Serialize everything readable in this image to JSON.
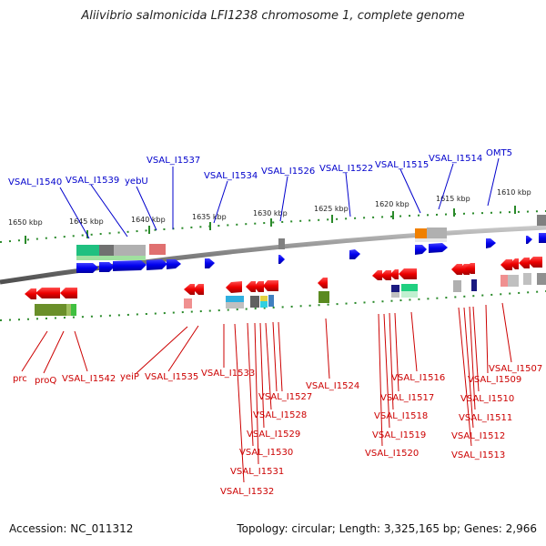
{
  "title": "Aliivibrio salmonicida LFI1238 chromosome 1, complete genome",
  "footer": {
    "accession": "Accession: NC_011312",
    "summary": "Topology: circular; Length: 3,325,165 bp; Genes: 2,966"
  },
  "colors": {
    "top_label": "#0000cc",
    "bottom_label": "#cc0000",
    "forward_gene": "#0000ee",
    "reverse_gene": "#ee0000",
    "backbone": "#888888",
    "tick": "#2a8a2a"
  },
  "kbp_labels": [
    "1650 kbp",
    "1645 kbp",
    "1640 kbp",
    "1635 kbp",
    "1630 kbp",
    "1625 kbp",
    "1620 kbp",
    "1615 kbp",
    "1610 kbp"
  ],
  "top_labels": [
    "VSAL_I1540",
    "VSAL_I1539",
    "yebU",
    "VSAL_I1537",
    "VSAL_I1534",
    "VSAL_I1526",
    "VSAL_I1522",
    "VSAL_I1515",
    "VSAL_I1514",
    "OMT5"
  ],
  "bottom_labels": [
    "prc",
    "proQ",
    "VSAL_I1542",
    "yeiP",
    "VSAL_I1535",
    "VSAL_I1533",
    "VSAL_I1527",
    "VSAL_I1528",
    "VSAL_I1529",
    "VSAL_I1530",
    "VSAL_I1531",
    "VSAL_I1532",
    "VSAL_I1524",
    "VSAL_I1516",
    "VSAL_I1517",
    "VSAL_I1518",
    "VSAL_I1519",
    "VSAL_I1520",
    "VSAL_I1507",
    "VSAL_I1509",
    "VSAL_I1510",
    "VSAL_I1511",
    "VSAL_I1512",
    "VSAL_I1513"
  ]
}
